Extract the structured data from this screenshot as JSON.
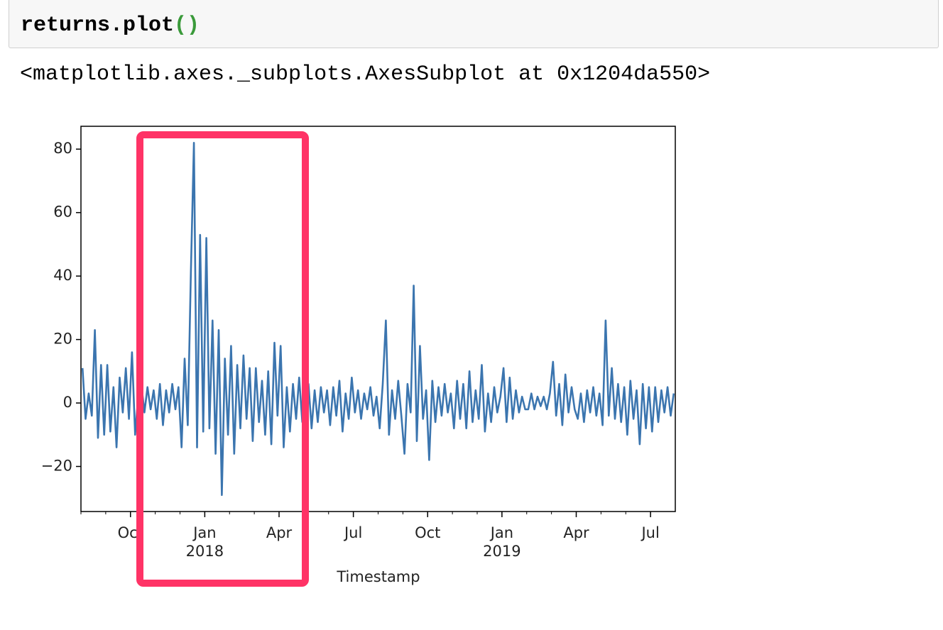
{
  "code_cell": {
    "code": "returns.plot",
    "parens": "()"
  },
  "output_text": "<matplotlib.axes._subplots.AxesSubplot at 0x1204da550>",
  "chart_data": {
    "type": "line",
    "xlabel": "Timestamp",
    "x": [
      "2017-08",
      "2017-09",
      "2017-10",
      "2017-11",
      "2017-12",
      "2018-01",
      "2018-02",
      "2018-03",
      "2018-04",
      "2018-05",
      "2018-06",
      "2018-07",
      "2018-08",
      "2018-09",
      "2018-10",
      "2018-11",
      "2018-12",
      "2019-01",
      "2019-02",
      "2019-03",
      "2019-04",
      "2019-05",
      "2019-06",
      "2019-07"
    ],
    "series": [
      {
        "color": "#3b75af",
        "values": [
          [
            11,
            -5,
            3,
            -4,
            23,
            -11,
            12,
            -10
          ],
          [
            12,
            -9,
            5,
            -14,
            8,
            -3,
            11,
            -5
          ],
          [
            16,
            -10,
            2,
            6,
            -3,
            5,
            -2,
            4
          ],
          [
            -5,
            6,
            -7,
            4,
            -3,
            6,
            -2,
            5
          ],
          [
            -14,
            14,
            -7,
            41,
            82,
            -14,
            53,
            -9
          ],
          [
            52,
            -8,
            26,
            -16,
            23,
            -29,
            14,
            -10
          ],
          [
            18,
            -16,
            12,
            -8,
            15,
            -5,
            11,
            -12
          ],
          [
            11,
            -6,
            7,
            -10,
            10,
            -13,
            19,
            -4
          ],
          [
            18,
            -14,
            5,
            -9,
            6,
            -5,
            8,
            -6
          ],
          [
            -4,
            6,
            -8,
            4,
            -6,
            5,
            -3,
            4
          ],
          [
            -7,
            5,
            -4,
            7,
            -9,
            3,
            -5,
            8
          ],
          [
            -3,
            4,
            -5,
            3,
            -2,
            5,
            -4,
            2
          ],
          [
            -8,
            6,
            26,
            -10,
            4,
            -5,
            7,
            -4
          ],
          [
            -16,
            6,
            -3,
            37,
            -12,
            18,
            -5,
            4
          ],
          [
            -18,
            7,
            -6,
            5,
            -4,
            6,
            -3,
            3
          ],
          [
            -8,
            7,
            -5,
            6,
            -8,
            10,
            -6,
            4
          ],
          [
            -5,
            12,
            -9,
            3,
            -6,
            5,
            -3,
            2
          ],
          [
            11,
            -6,
            8,
            -5,
            4,
            -3,
            2,
            -2
          ],
          [
            -2,
            3,
            -2,
            2,
            -1,
            2,
            -2,
            3
          ],
          [
            13,
            -4,
            6,
            -7,
            9,
            -3,
            5,
            -2
          ],
          [
            -5,
            3,
            -6,
            4,
            -3,
            5,
            -4,
            3
          ],
          [
            -7,
            26,
            -4,
            11,
            -5,
            6,
            -6,
            5
          ],
          [
            -10,
            7,
            -5,
            4,
            -13,
            6,
            -8,
            5
          ],
          [
            -9,
            5,
            -6,
            4,
            -3,
            5,
            -4,
            3
          ]
        ]
      }
    ],
    "ylim": [
      -34.2,
      87.2
    ],
    "yticks": [
      {
        "value": -20,
        "label": "−20"
      },
      0,
      20,
      40,
      60,
      80
    ],
    "xticks": [
      {
        "value": "2017-10",
        "label": "Oct"
      },
      {
        "value": "2018-01",
        "label": "Jan",
        "year": "2018"
      },
      {
        "value": "2018-04",
        "label": "Apr"
      },
      {
        "value": "2018-07",
        "label": "Jul"
      },
      {
        "value": "2018-10",
        "label": "Oct"
      },
      {
        "value": "2019-01",
        "label": "Jan",
        "year": "2019"
      },
      {
        "value": "2019-04",
        "label": "Apr"
      },
      {
        "value": "2019-07",
        "label": "Jul"
      }
    ]
  }
}
